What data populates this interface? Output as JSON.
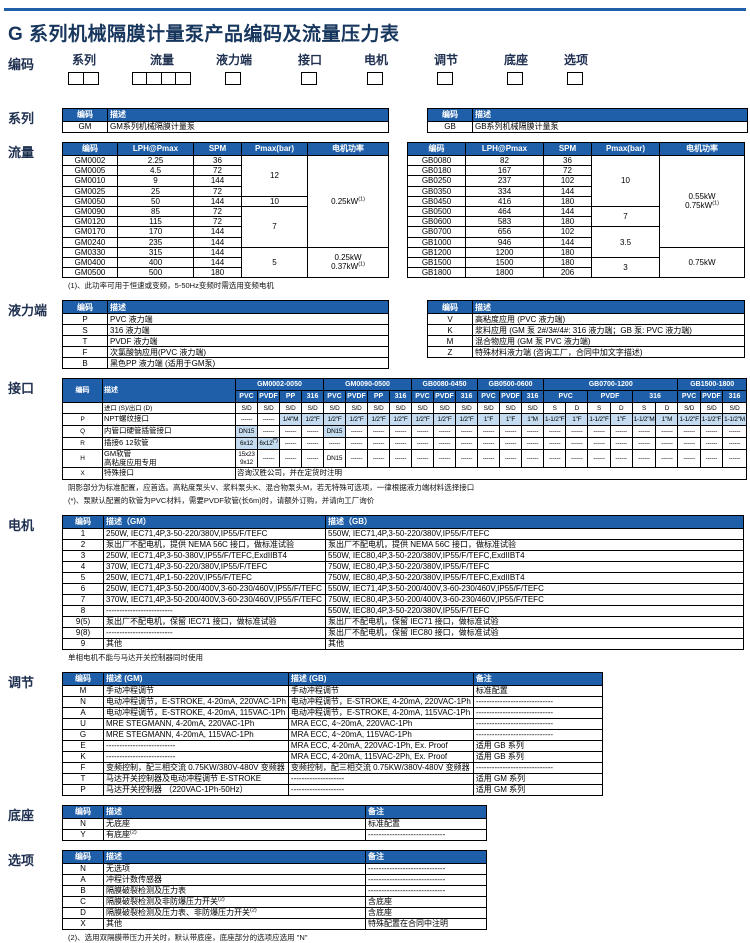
{
  "title": "G 系列机械隔膜计量泵产品编码及流量压力表",
  "coding": {
    "label": "编码",
    "groups": [
      {
        "label": "系列",
        "boxes": 2
      },
      {
        "label": "流量",
        "boxes": 4
      },
      {
        "label": "液力端",
        "boxes": 1
      },
      {
        "label": "接口",
        "boxes": 1
      },
      {
        "label": "电机",
        "boxes": 1
      },
      {
        "label": "调节",
        "boxes": 1
      },
      {
        "label": "底座",
        "boxes": 1
      },
      {
        "label": "选项",
        "boxes": 1
      }
    ]
  },
  "series": {
    "label": "系列",
    "headers": [
      "编码",
      "描述"
    ],
    "left_rows": [
      [
        "GM",
        "GM系列机械隔膜计量泵"
      ]
    ],
    "right_rows": [
      [
        "GB",
        "GB系列机械隔膜计量泵"
      ]
    ]
  },
  "flow": {
    "label": "流量",
    "headers": [
      "编码",
      "LPH@Pmax",
      "SPM",
      "Pmax(bar)",
      "电机功率"
    ],
    "gm": {
      "rows": [
        [
          "GM0002",
          "2.25",
          "36"
        ],
        [
          "GM0005",
          "4.5",
          "72"
        ],
        [
          "GM0010",
          "9",
          "144"
        ],
        [
          "GM0025",
          "25",
          "72"
        ],
        [
          "GM0050",
          "50",
          "144"
        ],
        [
          "GM0090",
          "85",
          "72"
        ],
        [
          "GM0120",
          "115",
          "72"
        ],
        [
          "GM0170",
          "170",
          "144"
        ],
        [
          "GM0240",
          "235",
          "144"
        ],
        [
          "GM0330",
          "315",
          "144"
        ],
        [
          "GM0400",
          "400",
          "144"
        ],
        [
          "GM0500",
          "500",
          "180"
        ]
      ],
      "pmax": [
        {
          "v": "12",
          "span": 4
        },
        {
          "v": "10",
          "span": 1
        },
        {
          "v": "7",
          "span": 4
        },
        {
          "v": "5",
          "span": 3
        }
      ],
      "power": [
        {
          "lines": [
            "0.25kW^(1)"
          ],
          "span": 9
        },
        {
          "lines": [
            "0.25kW",
            "0.37kW^(1)"
          ],
          "span": 3
        }
      ]
    },
    "gb": {
      "rows": [
        [
          "GB0080",
          "82",
          "36"
        ],
        [
          "GB0180",
          "167",
          "72"
        ],
        [
          "GB0250",
          "237",
          "102"
        ],
        [
          "GB0350",
          "334",
          "144"
        ],
        [
          "GB0450",
          "416",
          "180"
        ],
        [
          "GB0500",
          "464",
          "144"
        ],
        [
          "GB0600",
          "583",
          "180"
        ],
        [
          "GB0700",
          "656",
          "102"
        ],
        [
          "GB1000",
          "946",
          "144"
        ],
        [
          "GB1200",
          "1200",
          "180"
        ],
        [
          "GB1500",
          "1500",
          "180"
        ],
        [
          "GB1800",
          "1800",
          "206"
        ]
      ],
      "pmax": [
        {
          "v": "10",
          "span": 5
        },
        {
          "v": "7",
          "span": 2
        },
        {
          "v": "3.5",
          "span": 3
        },
        {
          "v": "3",
          "span": 2
        }
      ],
      "power": [
        {
          "lines": [
            "0.55kW",
            "0.75kW^(1)"
          ],
          "span": 9
        },
        {
          "lines": [
            "0.75kW"
          ],
          "span": 3
        }
      ]
    },
    "note": "(1)、此功率可用于恒速或变频，5-50Hz变频时需选用变频电机"
  },
  "hydraulic": {
    "label": "液力端",
    "headers": [
      "编码",
      "描述"
    ],
    "left_rows": [
      [
        "P",
        "PVC 液力端"
      ],
      [
        "S",
        "316 液力端"
      ],
      [
        "T",
        "PVDF 液力端"
      ],
      [
        "F",
        "次氯酸钠应用(PVC 液力端)"
      ],
      [
        "B",
        "黑色PP 液力端 (适用于GM泵)"
      ]
    ],
    "right_rows": [
      [
        "V",
        "高粘度应用 (PVC 液力端)"
      ],
      [
        "K",
        "浆料应用 (GM 泵 2#/3#/4#: 316 液力端；GB 泵: PVC 液力端)"
      ],
      [
        "M",
        "混合物应用 (GM 泵 PVC 液力端)"
      ],
      [
        "Z",
        "特殊材料液力端 (咨询工厂，合同中加文字描述)"
      ]
    ]
  },
  "interface": {
    "label": "接口",
    "code_header": "编码",
    "desc_header": "描述",
    "sd_label": "进口 (S)/出口 (D)",
    "sd": "S/D",
    "s": "S",
    "d": "D",
    "dash": "------",
    "groups": [
      {
        "name": "GM0002-0050",
        "materials": [
          "PVC",
          "PVDF",
          "PP",
          "316"
        ],
        "split": false
      },
      {
        "name": "GM0090-0500",
        "materials": [
          "PVC",
          "PVDF",
          "PP",
          "316"
        ],
        "split": false
      },
      {
        "name": "GB0080-0450",
        "materials": [
          "PVC",
          "PVDF",
          "316"
        ],
        "split": false
      },
      {
        "name": "GB0500-0600",
        "materials": [
          "PVC",
          "PVDF",
          "316"
        ],
        "split": false
      },
      {
        "name": "GB0700-1200",
        "materials": [
          "PVC",
          "PVDF",
          "316"
        ],
        "split": true
      },
      {
        "name": "GB1500-1800",
        "materials": [
          "PVC",
          "PVDF",
          "316"
        ],
        "split": false
      }
    ],
    "rows": [
      {
        "code": "P",
        "desc": [
          "NPT螺纹接口"
        ],
        "cells": [
          {
            "dash": true
          },
          {
            "dash": true
          },
          {
            "t": "1/4\"M",
            "shade": true
          },
          {
            "t": "1/2\"F",
            "shade": true
          },
          {
            "t": "1/2\"F",
            "shade": true
          },
          {
            "t": "1/2\"F",
            "shade": true
          },
          {
            "t": "1/2\"F",
            "shade": true
          },
          {
            "t": "1/2\"F",
            "shade": true
          },
          {
            "t": "1/2\"F",
            "shade": true
          },
          {
            "t": "1/2\"F",
            "shade": true
          },
          {
            "t": "1/2\"F",
            "shade": true
          },
          {
            "t": "1\"F",
            "shade": true
          },
          {
            "t": "1\"F",
            "shade": true
          },
          {
            "t": "1\"M",
            "shade": true
          },
          {
            "t": "1-1/2\"F",
            "shade": true
          },
          {
            "t": "1\"F",
            "shade": true
          },
          {
            "t": "1-1/2\"F",
            "shade": true
          },
          {
            "t": "1\"F",
            "shade": true
          },
          {
            "t": "1-1/2\"M",
            "shade": true
          },
          {
            "t": "1\"M",
            "shade": true
          },
          {
            "t": "1-1/2\"F",
            "shade": true
          },
          {
            "t": "1-1/2\"F",
            "shade": true
          },
          {
            "t": "1-1/2\"M",
            "shade": true
          }
        ]
      },
      {
        "code": "Q",
        "desc": [
          "内管口硬管插管接口"
        ],
        "cells": [
          {
            "t": "DN15",
            "shade": true
          },
          {
            "dash": true
          },
          {
            "dash": true
          },
          {
            "dash": true
          },
          {
            "t": "DN15",
            "shade": true
          },
          {
            "dash": true
          },
          {
            "dash": true
          },
          {
            "dash": true
          },
          {
            "dash": true
          },
          {
            "dash": true
          },
          {
            "dash": true
          },
          {
            "dash": true
          },
          {
            "dash": true
          },
          {
            "dash": true
          },
          {
            "dash": true
          },
          {
            "dash": true
          },
          {
            "dash": true
          },
          {
            "dash": true
          },
          {
            "dash": true
          },
          {
            "dash": true
          },
          {
            "dash": true
          },
          {
            "dash": true
          },
          {
            "dash": true
          }
        ]
      },
      {
        "code": "R",
        "desc": [
          "插接6 12软管"
        ],
        "cells": [
          {
            "t": "6x12",
            "shade": true
          },
          {
            "t": "6x12^(*)",
            "shade": true
          },
          {
            "dash": true
          },
          {
            "dash": true
          },
          {
            "dash": true
          },
          {
            "dash": true
          },
          {
            "dash": true
          },
          {
            "dash": true
          },
          {
            "dash": true
          },
          {
            "dash": true
          },
          {
            "dash": true
          },
          {
            "dash": true
          },
          {
            "dash": true
          },
          {
            "dash": true
          },
          {
            "dash": true
          },
          {
            "dash": true
          },
          {
            "dash": true
          },
          {
            "dash": true
          },
          {
            "dash": true
          },
          {
            "dash": true
          },
          {
            "dash": true
          },
          {
            "dash": true
          },
          {
            "dash": true
          }
        ]
      },
      {
        "code": "H",
        "desc": [
          "GM软管",
          "高粘度应用专用"
        ],
        "cells": [
          {
            "lines": [
              "15x23",
              "9x12"
            ]
          },
          {
            "dash": true
          },
          {
            "dash": true
          },
          {
            "dash": true
          },
          {
            "t": "DN15"
          },
          {
            "dash": true
          },
          {
            "dash": true
          },
          {
            "dash": true
          },
          {
            "dash": true
          },
          {
            "dash": true
          },
          {
            "dash": true
          },
          {
            "dash": true
          },
          {
            "dash": true
          },
          {
            "dash": true
          },
          {
            "dash": true
          },
          {
            "dash": true
          },
          {
            "dash": true
          },
          {
            "dash": true
          },
          {
            "dash": true
          },
          {
            "dash": true
          },
          {
            "dash": true
          },
          {
            "dash": true
          },
          {
            "dash": true
          }
        ]
      },
      {
        "code": "X",
        "desc": [
          "特殊接口"
        ],
        "merge": "咨询汉胜公司，并在定货时注明"
      }
    ],
    "notes": [
      "阴影部分为标准配置，应首选。高粘度泵头V、浆料泵头K、混合物泵头M，若无特殊可选项，一律根据液力端材料选择接口",
      "(*)、泵默认配置的软管为PVC材料，需要PVDF软管(长6m)时，请额外订购，并请向工厂询价"
    ]
  },
  "motor": {
    "label": "电机",
    "headers": [
      "编码",
      "描述（GM）",
      "描述（GB）"
    ],
    "rows": [
      [
        "1",
        "250W, IEC71,4P,3-50-220/380V,IP55/F/TEFC",
        "550W, IEC71,4P,3-50-220/380V,IP55/F/TEFC"
      ],
      [
        "2",
        "泵出厂不配电机，提供 NEMA 56C 接口，做标准试验",
        "泵出厂不配电机，提供 NEMA 56C 接口，做标准试验"
      ],
      [
        "3",
        "250W, IEC71,4P,3-50-380V,IP55/F/TEFC,ExdIIBT4",
        "550W, IEC80,4P,3-50-220/380V,IP55/F/TEFC,ExdIIBT4"
      ],
      [
        "4",
        "370W, IEC71,4P,3-50-220/380V,IP55/F/TEFC",
        "750W, IEC80,4P,3-50-220/380V,IP55/F/TEFC"
      ],
      [
        "5",
        "250W, IEC71,4P,1-50-220V,IP55/F/TEFC",
        "750W, IEC80,4P,3-50-220/380V,IP55/F/TEFC,ExdIIBT4"
      ],
      [
        "6",
        "250W, IEC71,4P,3-50-200/400V,3-60-230/460V,IP55/F/TEFC",
        "550W, IEC71,4P,3-50-200/400V,3-60-230/460V,IP55/F/TEFC"
      ],
      [
        "7",
        "370W, IEC71,4P,3-50-200/400V,3-60-230/460V,IP55/F/TEFC",
        "750W, IEC80,4P,3-50-200/400V,3-60-230/460V,IP55/F/TEFC"
      ],
      [
        "8",
        "-------------------------",
        "550W, IEC80,4P,3-50-220/380V,IP55/F/TEFC"
      ],
      [
        "9(5)",
        "泵出厂不配电机，保留 IEC71 接口，做标准试验",
        "泵出厂不配电机，保留 IEC71 接口，做标准试验"
      ],
      [
        "9(8)",
        "-------------------------",
        "泵出厂不配电机，保留 IEC80 接口，做标准试验"
      ],
      [
        "9",
        "其他",
        "其他"
      ]
    ],
    "note": "单相电机不能与马达开关控制器同时使用"
  },
  "adjust": {
    "label": "调节",
    "headers": [
      "编码",
      "描述 (GM)",
      "描述 (GB)",
      "备注"
    ],
    "rows": [
      [
        "M",
        "手动冲程调节",
        "手动冲程调节",
        "标准配置"
      ],
      [
        "N",
        "电动冲程调节，E-STROKE, 4-20mA, 220VAC-1Ph",
        "电动冲程调节，E-STROKE, 4-20mA, 220VAC-1Ph",
        "-----------------------------"
      ],
      [
        "A",
        "电动冲程调节，E-STROKE, 4-20mA, 115VAC-1Ph",
        "电动冲程调节，E-STROKE, 4-20mA, 115VAC-1Ph",
        "-----------------------------"
      ],
      [
        "U",
        "MRE STEGMANN, 4-20mA, 220VAC-1Ph",
        "MRA ECC, 4~20mA, 220VAC-1Ph",
        "-----------------------------"
      ],
      [
        "G",
        "MRE STEGMANN, 4-20mA, 115VAC-1Ph",
        "MRA ECC, 4~20mA, 115VAC-1Ph",
        "-----------------------------"
      ],
      [
        "E",
        "--------------------------",
        "MRA ECC, 4-20mA, 220VAC-1Ph, Ex. Proof",
        "适用 GB 系列"
      ],
      [
        "K",
        "--------------------------",
        "MRA ECC, 4-20mA, 115VAC-2Ph, Ex. Proof",
        "适用 GB 系列"
      ],
      [
        "F",
        "变频控制，配三相交流 0.75KW/380V-480V 变频器",
        "变频控制，配三相交流 0.75KW/380V-480V 变频器",
        "-----------------------------"
      ],
      [
        "T",
        "马达开关控制器及电动冲程调节 E-STROKE",
        "--------------------",
        "适用 GM 系列"
      ],
      [
        "P",
        "马达开关控制器 （220VAC-1Ph-50Hz）",
        "--------------------",
        "适用 GM 系列"
      ]
    ]
  },
  "base": {
    "label": "底座",
    "headers": [
      "编码",
      "描述",
      "备注"
    ],
    "rows": [
      [
        "N",
        "无底座",
        "标准配置"
      ],
      [
        "Y",
        "有底座^(2)",
        "-----------------------------"
      ]
    ]
  },
  "options": {
    "label": "选项",
    "headers": [
      "编码",
      "描述",
      "备注"
    ],
    "rows": [
      [
        "N",
        "无选项",
        "-----------------------------"
      ],
      [
        "A",
        "冲程计数传感器",
        "-----------------------------"
      ],
      [
        "B",
        "隔膜破裂检测及压力表",
        "-----------------------------"
      ],
      [
        "C",
        "隔膜破裂检测及非防爆压力开关^(2)",
        "含底座"
      ],
      [
        "D",
        "隔膜破裂检测及压力表、非防爆压力开关^(2)",
        "含底座"
      ],
      [
        "X",
        "其他",
        "特殊配置在合同中注明"
      ]
    ],
    "note": "(2)、选用双隔膜带压力开关时，默认带底座，底座部分的选项应选用 \"N\""
  },
  "colors": {
    "header_blue": "#1F5FA9",
    "shade_blue": "#C5DCF0",
    "navy": "#17365D"
  }
}
